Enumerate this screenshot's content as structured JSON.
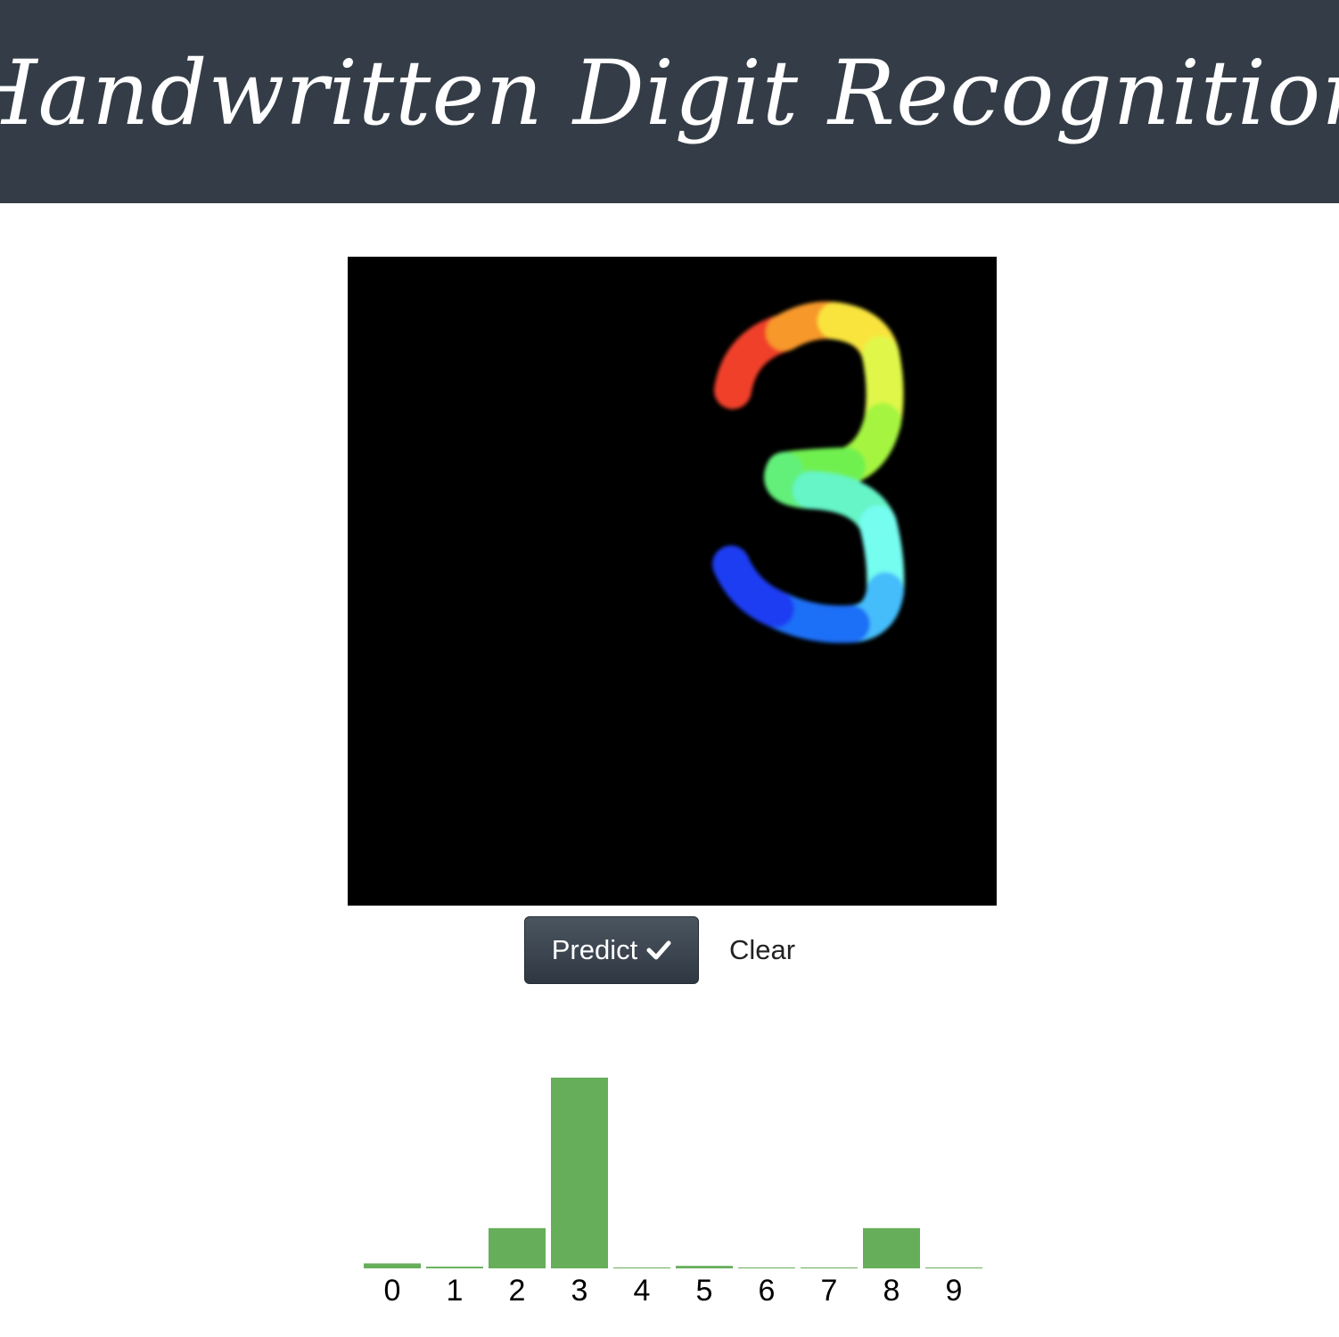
{
  "header": {
    "title": "Handwritten Digit Recognition"
  },
  "canvas": {
    "background": "#000000",
    "drawn_digit": "3"
  },
  "buttons": {
    "predict_label": "Predict",
    "predict_icon": "check-icon",
    "clear_label": "Clear"
  },
  "colors": {
    "header_bg": "#343d47",
    "bar": "#67ae5a",
    "button_bg": "#3a434d"
  },
  "chart_data": {
    "type": "bar",
    "categories": [
      "0",
      "1",
      "2",
      "3",
      "4",
      "5",
      "6",
      "7",
      "8",
      "9"
    ],
    "values": [
      0.026,
      0.009,
      0.211,
      1.0,
      0.0,
      0.013,
      0.004,
      0.004,
      0.211,
      0.004
    ],
    "title": "",
    "xlabel": "",
    "ylabel": "",
    "ylim": [
      0,
      1
    ]
  }
}
